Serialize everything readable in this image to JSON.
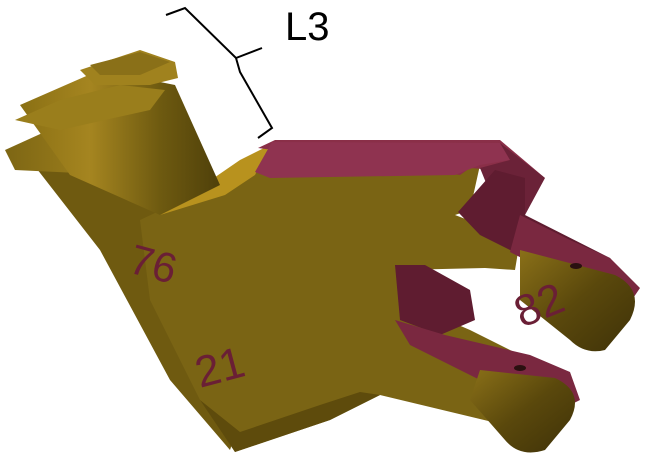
{
  "annotation": {
    "label": "L3"
  },
  "engraved_labels": {
    "upper_body": "76",
    "lower_body": "21",
    "fork_tip": "82"
  },
  "colors": {
    "body_mid": "#7a6414",
    "body_dark": "#5c4a0c",
    "body_light": "#9a7e1c",
    "top_face": "#b8921e",
    "cut_face": "#8a2f48",
    "cut_face_dark": "#5f1c30",
    "engrave_text": "#6a1f35",
    "bracket": "#000000"
  }
}
